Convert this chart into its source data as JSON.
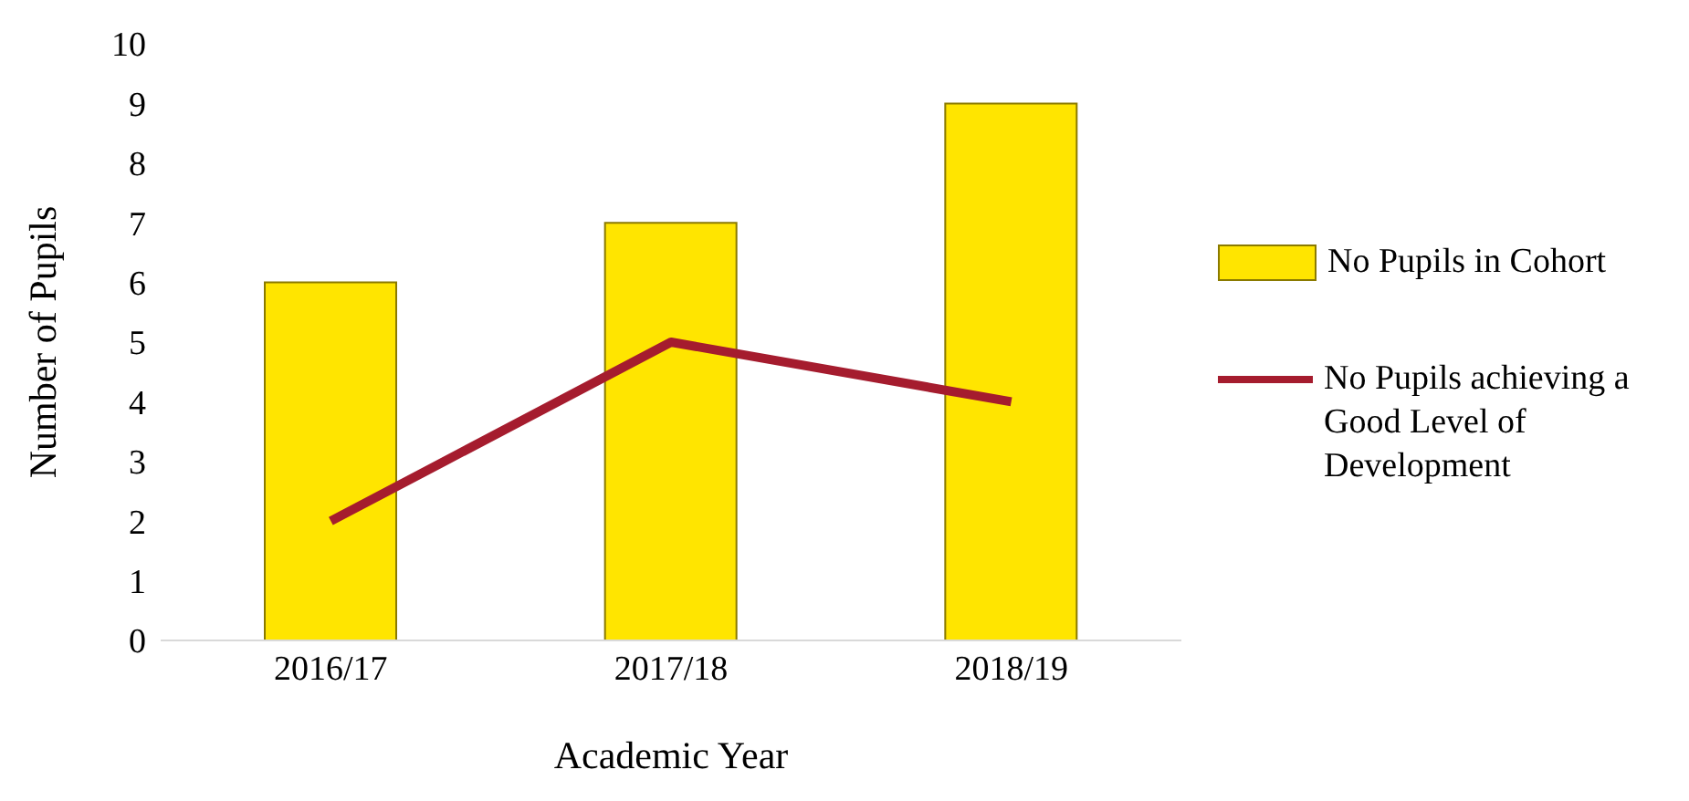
{
  "chart_data": {
    "type": "bar",
    "xlabel": "Academic Year",
    "ylabel": "Number of Pupils",
    "categories": [
      "2016/17",
      "2017/18",
      "2018/19"
    ],
    "series": [
      {
        "name": "No Pupils in Cohort",
        "color": "#ffe500",
        "values": [
          6,
          7,
          9
        ]
      },
      {
        "name": "No Pupils achieving a Good Level of Development",
        "type": "line",
        "color": "#a51c2e",
        "values": [
          2,
          5,
          4
        ],
        "marker": "none"
      }
    ],
    "ylim": [
      0,
      10
    ],
    "yticks": [
      0,
      1,
      2,
      3,
      4,
      5,
      6,
      7,
      8,
      9,
      10
    ],
    "grid": false,
    "legend": "right"
  }
}
